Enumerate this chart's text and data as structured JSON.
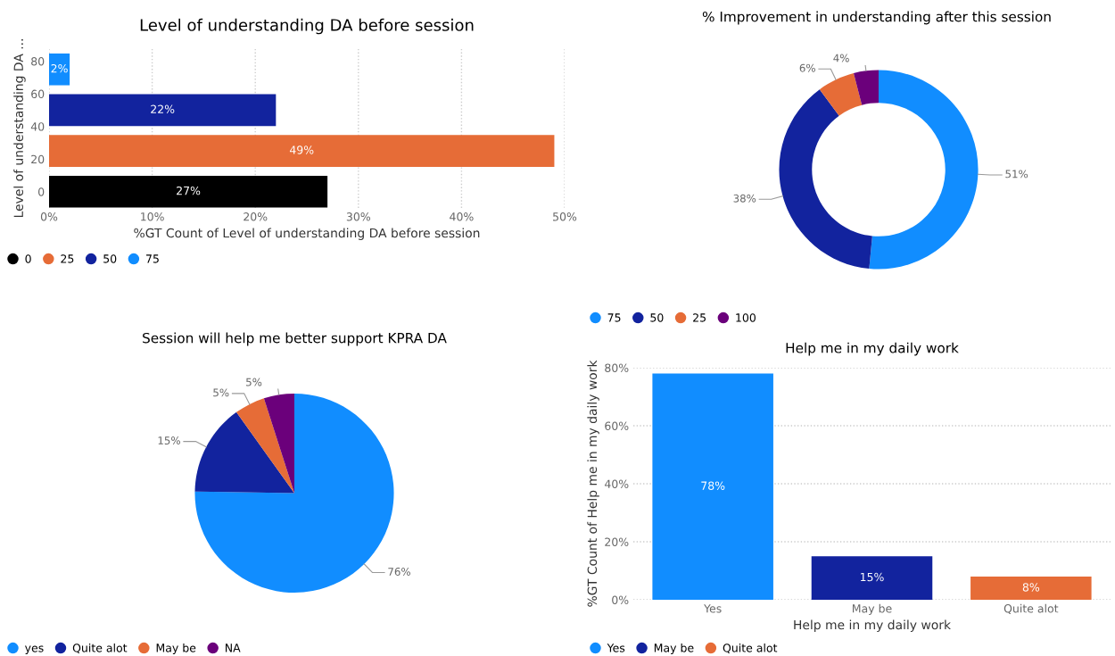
{
  "chart_data": [
    {
      "type": "bar",
      "orientation": "horizontal",
      "title": "Level of understanding DA before session",
      "xlabel": "%GT Count of Level of understanding DA before session",
      "ylabel": "Level of understanding DA ...",
      "series": [
        {
          "name": "0",
          "color": "#000000",
          "x": [
            0
          ],
          "values": [
            27
          ],
          "value_labels": [
            "27%"
          ]
        },
        {
          "name": "25",
          "color": "#e66c37",
          "x": [
            25
          ],
          "values": [
            49
          ],
          "value_labels": [
            "49%"
          ]
        },
        {
          "name": "50",
          "color": "#12239e",
          "x": [
            50
          ],
          "values": [
            22
          ],
          "value_labels": [
            "22%"
          ]
        },
        {
          "name": "75",
          "color": "#118dff",
          "x": [
            75
          ],
          "values": [
            2
          ],
          "value_labels": [
            "2%"
          ]
        }
      ],
      "xlim": [
        0,
        50
      ],
      "xticks": [
        {
          "value": 0,
          "label": "0%"
        },
        {
          "value": 10,
          "label": "10%"
        },
        {
          "value": 20,
          "label": "20%"
        },
        {
          "value": 30,
          "label": "30%"
        },
        {
          "value": 40,
          "label": "40%"
        },
        {
          "value": 50,
          "label": "50%"
        }
      ],
      "ylim": [
        -10,
        88
      ],
      "yticks": [
        0,
        20,
        40,
        60,
        80
      ],
      "grid": "x",
      "legend": "bottom left"
    },
    {
      "type": "donut",
      "title": "% Improvement in understanding after this session",
      "categories": [
        "75",
        "50",
        "25",
        "100"
      ],
      "values": [
        51,
        38,
        6,
        4
      ],
      "value_labels": [
        "51%",
        "38%",
        "6%",
        "4%"
      ],
      "colors": [
        "#118dff",
        "#12239e",
        "#e66c37",
        "#6b007b"
      ],
      "legend": "bottom left"
    },
    {
      "type": "pie",
      "title": "Session will help me better support KPRA DA",
      "categories": [
        "yes",
        "Quite alot",
        "May be",
        "NA"
      ],
      "values": [
        76,
        15,
        5,
        5
      ],
      "value_labels": [
        "76%",
        "15%",
        "5%",
        "5%"
      ],
      "colors": [
        "#118dff",
        "#12239e",
        "#e66c37",
        "#6b007b"
      ],
      "legend": "bottom left"
    },
    {
      "type": "bar",
      "title": "Help me in my daily work",
      "xlabel": "Help me in my daily work",
      "ylabel": "%GT Count of Help me in my daily work",
      "categories": [
        "Yes",
        "May be",
        "Quite alot"
      ],
      "stacked": true,
      "series": [
        {
          "name": "Yes",
          "color": "#118dff",
          "values": [
            78,
            null,
            null
          ],
          "value_labels": [
            "78%",
            null,
            null
          ]
        },
        {
          "name": "May be",
          "color": "#12239e",
          "values": [
            null,
            15,
            null
          ],
          "value_labels": [
            null,
            "15%",
            null
          ]
        },
        {
          "name": "Quite alot",
          "color": "#e66c37",
          "values": [
            null,
            null,
            8
          ],
          "value_labels": [
            null,
            null,
            "8%"
          ]
        }
      ],
      "ylim": [
        0,
        80
      ],
      "yticks": [
        {
          "value": 0,
          "label": "0%"
        },
        {
          "value": 20,
          "label": "20%"
        },
        {
          "value": 40,
          "label": "40%"
        },
        {
          "value": 60,
          "label": "60%"
        },
        {
          "value": 80,
          "label": "80%"
        }
      ],
      "grid": "y",
      "legend": "bottom left"
    }
  ]
}
